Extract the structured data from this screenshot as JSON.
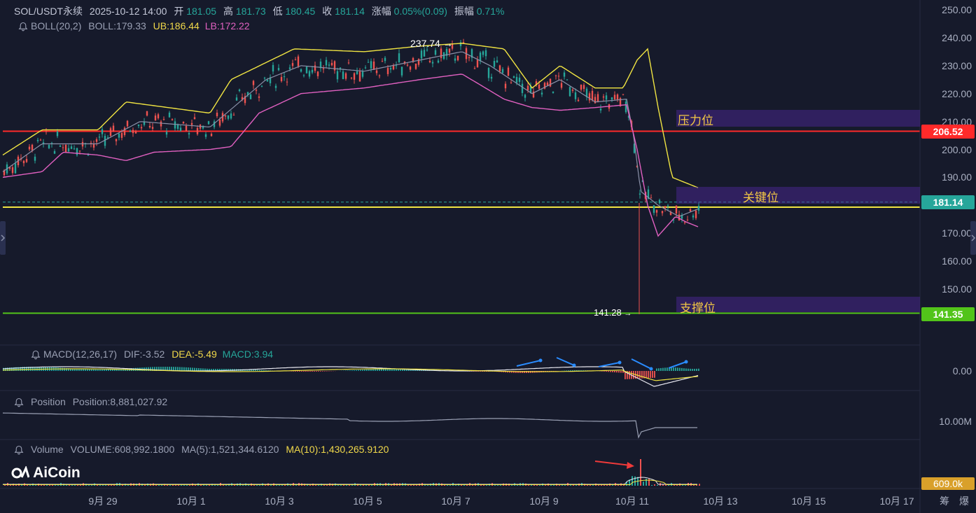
{
  "header": {
    "symbol": "SOL/USDT永续",
    "datetime": "2025-10-12 14:00",
    "open_label": "开",
    "open": "181.05",
    "high_label": "高",
    "high": "181.73",
    "low_label": "低",
    "low": "180.45",
    "close_label": "收",
    "close": "181.14",
    "change_label": "涨幅",
    "change": "0.05%(0.09)",
    "amp_label": "振幅",
    "amp": "0.71%"
  },
  "boll": {
    "name": "BOLL(20,2)",
    "mid": "BOLL:179.33",
    "ub": "UB:186.44",
    "lb": "LB:172.22"
  },
  "macd": {
    "name": "MACD(12,26,17)",
    "dif": "DIF:-3.52",
    "dea": "DEA:-5.49",
    "macd": "MACD:3.94",
    "zero_label": "0.00"
  },
  "position": {
    "name": "Position",
    "value": "Position:8,881,027.92",
    "axis_label": "10.00M"
  },
  "volume": {
    "name": "Volume",
    "value": "VOLUME:608,992.1800",
    "ma5": "MA(5):1,521,344.6120",
    "ma10": "MA(10):1,430,265.9120",
    "tag": "609.0k"
  },
  "price_axis": [
    "250.00",
    "240.00",
    "230.00",
    "220.00",
    "210.00",
    "200.00",
    "190.00",
    "180.00",
    "170.00",
    "160.00",
    "150.00"
  ],
  "date_axis": [
    "9月 29",
    "10月 1",
    "10月 3",
    "10月 5",
    "10月 7",
    "10月 9",
    "10月 11",
    "10月 13",
    "10月 15",
    "10月 17"
  ],
  "bottom_right": [
    "筹",
    "爆"
  ],
  "levels": {
    "resistance": {
      "label": "压力位",
      "price": "206.52",
      "color": "#ff2a2a"
    },
    "key": {
      "label": "关键位",
      "price": "181.14",
      "color": "#26a69a"
    },
    "support": {
      "label": "支撑位",
      "price": "141.35",
      "color": "#52c41a"
    }
  },
  "annotations": {
    "high_mark": "237.74",
    "low_mark": "141.28"
  },
  "logo": "AiCoin",
  "colors": {
    "up": "#26a69a",
    "down": "#ef5350",
    "ub": "#f0e442",
    "lb": "#e060c0",
    "mid": "#8a90a8",
    "background": "#161a2b",
    "zone": "#3c2a7a"
  },
  "chart_data": {
    "type": "line",
    "title": "SOL/USDT永续",
    "series": [
      {
        "name": "BOLL",
        "x": [
          "9月 29",
          "10月 1",
          "10月 3",
          "10月 5",
          "10月 7",
          "10月 9",
          "10月 11",
          "10月 13"
        ],
        "values": [
          200,
          204,
          226,
          228,
          232,
          222,
          214,
          179
        ]
      },
      {
        "name": "UB",
        "x": [
          "9月 29",
          "10月 1",
          "10月 3",
          "10月 5",
          "10月 7",
          "10月 9",
          "10月 11",
          "10月 13"
        ],
        "values": [
          206,
          213,
          234,
          236,
          238,
          228,
          232,
          187
        ]
      },
      {
        "name": "LB",
        "x": [
          "9月 29",
          "10月 1",
          "10月 3",
          "10月 5",
          "10月 7",
          "10月 9",
          "10月 11",
          "10月 13"
        ],
        "values": [
          193,
          197,
          215,
          220,
          226,
          217,
          172,
          172
        ]
      }
    ],
    "horizontal_lines": [
      206.52,
      179.33,
      141.35
    ],
    "ylim": [
      140,
      252
    ],
    "grid": false
  }
}
